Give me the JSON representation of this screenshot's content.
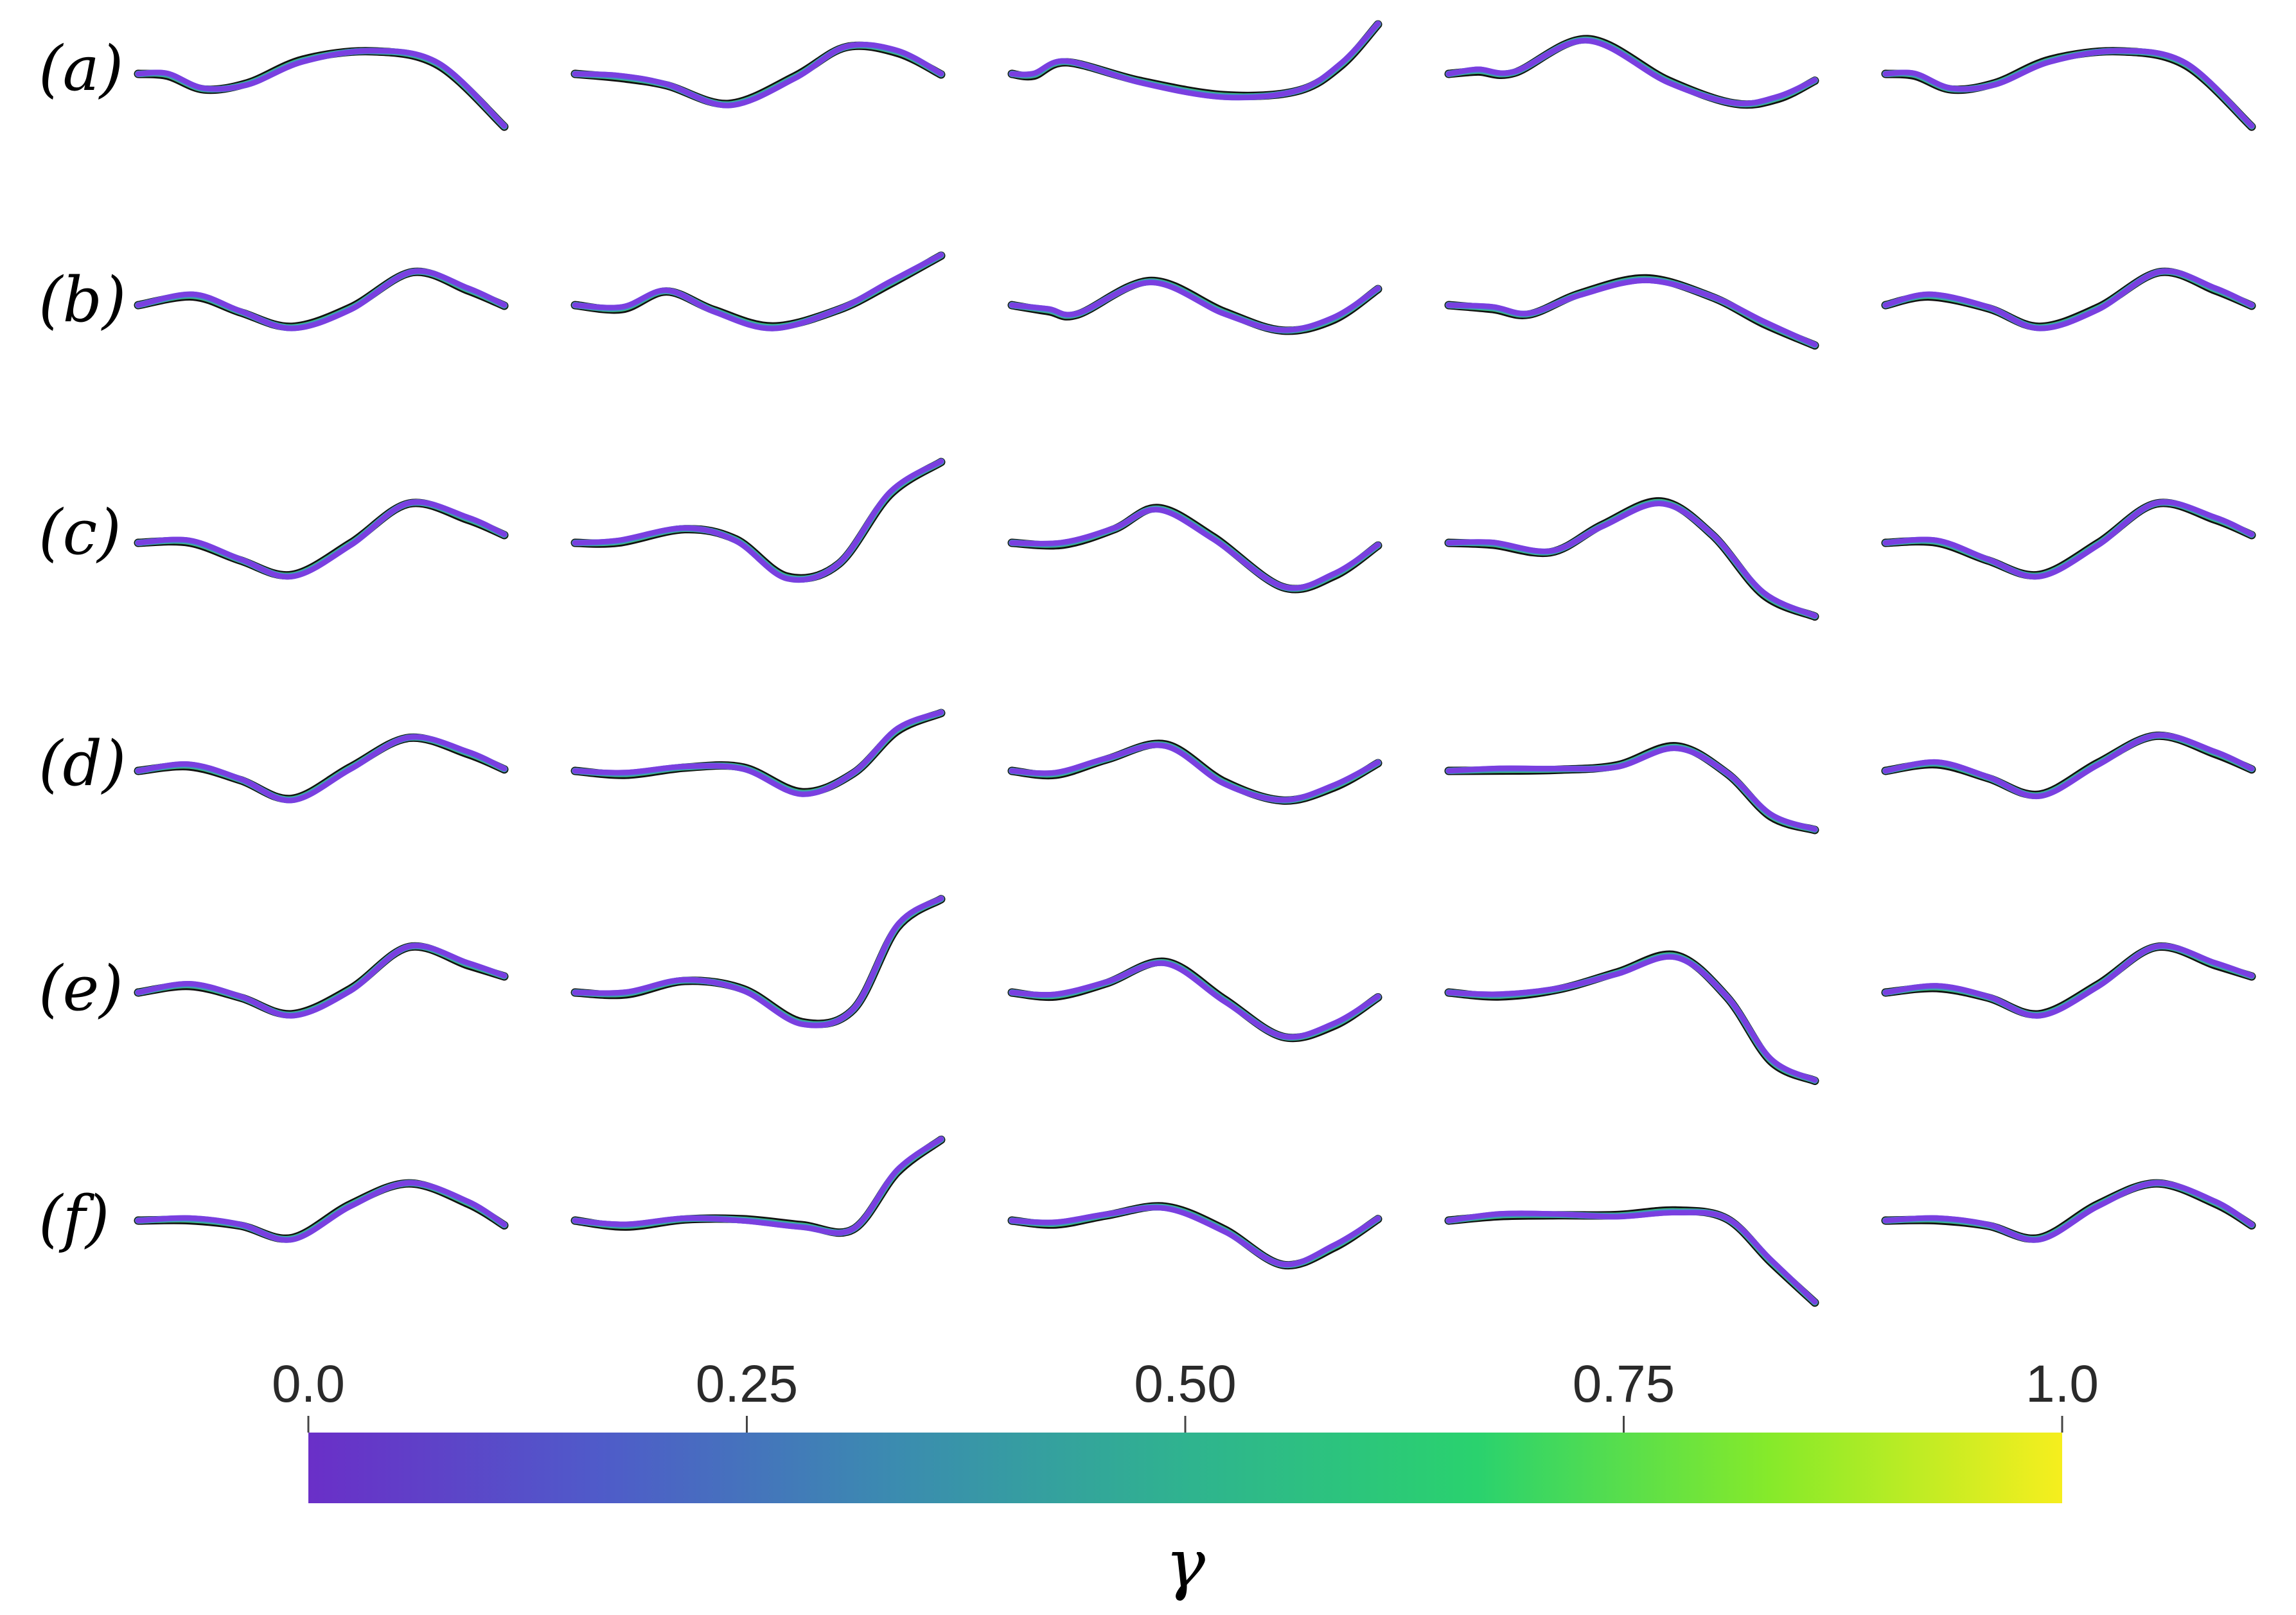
{
  "figure": {
    "row_labels": [
      "(a)",
      "(b)",
      "(c)",
      "(d)",
      "(e)",
      "(f)"
    ],
    "colorbar": {
      "label": "γ",
      "ticks": [
        "0.0",
        "0.25",
        "0.50",
        "0.75",
        "1.0"
      ],
      "tick_values": [
        0.0,
        0.25,
        0.5,
        0.75,
        1.0
      ],
      "colors": [
        "#6a2fc8",
        "#4f5bc9",
        "#3b8bb0",
        "#2fb38f",
        "#2ad26e",
        "#86ea2a",
        "#f6ee1e"
      ]
    },
    "curve_colors": {
      "outline": "#111111",
      "green": "#3fd07a",
      "teal": "#3a98b4",
      "blue": "#5a6ed6",
      "purple": "#7a3fe0"
    },
    "rows": [
      [
        [
          [
            0.0,
            0.0
          ],
          [
            0.08,
            0.0
          ],
          [
            0.18,
            -0.35
          ],
          [
            0.3,
            -0.25
          ],
          [
            0.45,
            0.3
          ],
          [
            0.64,
            0.55
          ],
          [
            0.82,
            0.25
          ],
          [
            1.0,
            -1.25
          ]
        ],
        [
          [
            0.0,
            0.0
          ],
          [
            0.12,
            -0.05
          ],
          [
            0.25,
            -0.25
          ],
          [
            0.42,
            -0.75
          ],
          [
            0.6,
            -0.1
          ],
          [
            0.74,
            0.65
          ],
          [
            0.88,
            0.55
          ],
          [
            1.0,
            0.0
          ]
        ],
        [
          [
            0.0,
            0.0
          ],
          [
            0.06,
            0.0
          ],
          [
            0.15,
            0.3
          ],
          [
            0.35,
            -0.2
          ],
          [
            0.58,
            -0.55
          ],
          [
            0.78,
            -0.4
          ],
          [
            0.9,
            0.25
          ],
          [
            1.0,
            1.2
          ]
        ],
        [
          [
            0.0,
            0.0
          ],
          [
            0.08,
            0.1
          ],
          [
            0.18,
            0.05
          ],
          [
            0.38,
            0.8
          ],
          [
            0.6,
            -0.2
          ],
          [
            0.78,
            -0.7
          ],
          [
            0.9,
            -0.55
          ],
          [
            1.0,
            -0.15
          ]
        ],
        [
          [
            0.0,
            0.0
          ],
          [
            0.08,
            0.0
          ],
          [
            0.18,
            -0.35
          ],
          [
            0.3,
            -0.25
          ],
          [
            0.45,
            0.3
          ],
          [
            0.64,
            0.55
          ],
          [
            0.82,
            0.25
          ],
          [
            1.0,
            -1.25
          ]
        ]
      ],
      [
        [
          [
            0.0,
            0.0
          ],
          [
            0.15,
            0.25
          ],
          [
            0.28,
            -0.15
          ],
          [
            0.42,
            -0.55
          ],
          [
            0.58,
            -0.1
          ],
          [
            0.75,
            0.8
          ],
          [
            0.9,
            0.4
          ],
          [
            1.0,
            0.0
          ]
        ],
        [
          [
            0.0,
            0.0
          ],
          [
            0.13,
            -0.05
          ],
          [
            0.25,
            0.35
          ],
          [
            0.38,
            -0.15
          ],
          [
            0.54,
            -0.55
          ],
          [
            0.72,
            -0.1
          ],
          [
            0.86,
            0.55
          ],
          [
            1.0,
            1.2
          ]
        ],
        [
          [
            0.0,
            0.0
          ],
          [
            0.1,
            -0.1
          ],
          [
            0.18,
            -0.2
          ],
          [
            0.38,
            0.55
          ],
          [
            0.58,
            -0.2
          ],
          [
            0.74,
            -0.6
          ],
          [
            0.88,
            -0.3
          ],
          [
            1.0,
            0.4
          ]
        ],
        [
          [
            0.0,
            0.0
          ],
          [
            0.12,
            -0.05
          ],
          [
            0.22,
            -0.2
          ],
          [
            0.36,
            0.25
          ],
          [
            0.54,
            0.6
          ],
          [
            0.72,
            0.2
          ],
          [
            0.86,
            -0.4
          ],
          [
            1.0,
            -0.95
          ]
        ],
        [
          [
            0.0,
            0.0
          ],
          [
            0.12,
            0.25
          ],
          [
            0.28,
            -0.05
          ],
          [
            0.42,
            -0.55
          ],
          [
            0.58,
            -0.1
          ],
          [
            0.75,
            0.8
          ],
          [
            0.9,
            0.4
          ],
          [
            1.0,
            0.0
          ]
        ]
      ],
      [
        [
          [
            0.0,
            0.0
          ],
          [
            0.14,
            0.05
          ],
          [
            0.28,
            -0.4
          ],
          [
            0.42,
            -0.8
          ],
          [
            0.58,
            -0.05
          ],
          [
            0.74,
            0.95
          ],
          [
            0.9,
            0.6
          ],
          [
            1.0,
            0.2
          ]
        ],
        [
          [
            0.0,
            0.0
          ],
          [
            0.12,
            0.05
          ],
          [
            0.3,
            0.35
          ],
          [
            0.44,
            0.05
          ],
          [
            0.58,
            -0.85
          ],
          [
            0.72,
            -0.5
          ],
          [
            0.86,
            1.2
          ],
          [
            1.0,
            1.95
          ]
        ],
        [
          [
            0.0,
            0.0
          ],
          [
            0.14,
            0.0
          ],
          [
            0.28,
            0.35
          ],
          [
            0.4,
            0.8
          ],
          [
            0.55,
            0.1
          ],
          [
            0.74,
            -1.05
          ],
          [
            0.88,
            -0.75
          ],
          [
            1.0,
            -0.05
          ]
        ],
        [
          [
            0.0,
            0.0
          ],
          [
            0.12,
            0.0
          ],
          [
            0.28,
            -0.2
          ],
          [
            0.42,
            0.4
          ],
          [
            0.58,
            0.95
          ],
          [
            0.72,
            0.2
          ],
          [
            0.86,
            -1.2
          ],
          [
            1.0,
            -1.75
          ]
        ],
        [
          [
            0.0,
            0.0
          ],
          [
            0.14,
            0.05
          ],
          [
            0.28,
            -0.4
          ],
          [
            0.42,
            -0.8
          ],
          [
            0.58,
            -0.05
          ],
          [
            0.74,
            0.95
          ],
          [
            0.9,
            0.6
          ],
          [
            1.0,
            0.2
          ]
        ]
      ],
      [
        [
          [
            0.0,
            0.0
          ],
          [
            0.14,
            0.15
          ],
          [
            0.28,
            -0.2
          ],
          [
            0.42,
            -0.7
          ],
          [
            0.58,
            0.05
          ],
          [
            0.74,
            0.8
          ],
          [
            0.9,
            0.45
          ],
          [
            1.0,
            0.05
          ]
        ],
        [
          [
            0.0,
            0.0
          ],
          [
            0.14,
            -0.05
          ],
          [
            0.3,
            0.1
          ],
          [
            0.46,
            0.05
          ],
          [
            0.62,
            -0.55
          ],
          [
            0.76,
            -0.05
          ],
          [
            0.88,
            1.0
          ],
          [
            1.0,
            1.4
          ]
        ],
        [
          [
            0.0,
            0.0
          ],
          [
            0.12,
            -0.05
          ],
          [
            0.26,
            0.3
          ],
          [
            0.42,
            0.6
          ],
          [
            0.58,
            -0.3
          ],
          [
            0.74,
            -0.7
          ],
          [
            0.88,
            -0.35
          ],
          [
            1.0,
            0.2
          ]
        ],
        [
          [
            0.0,
            0.0
          ],
          [
            0.14,
            0.05
          ],
          [
            0.3,
            0.05
          ],
          [
            0.46,
            0.1
          ],
          [
            0.62,
            0.55
          ],
          [
            0.76,
            -0.05
          ],
          [
            0.88,
            -1.05
          ],
          [
            1.0,
            -1.4
          ]
        ],
        [
          [
            0.0,
            0.0
          ],
          [
            0.14,
            0.2
          ],
          [
            0.28,
            -0.15
          ],
          [
            0.42,
            -0.6
          ],
          [
            0.58,
            0.15
          ],
          [
            0.74,
            0.85
          ],
          [
            0.9,
            0.45
          ],
          [
            1.0,
            0.05
          ]
        ]
      ],
      [
        [
          [
            0.0,
            0.0
          ],
          [
            0.14,
            0.2
          ],
          [
            0.28,
            -0.1
          ],
          [
            0.42,
            -0.55
          ],
          [
            0.58,
            0.05
          ],
          [
            0.74,
            1.1
          ],
          [
            0.9,
            0.7
          ],
          [
            1.0,
            0.4
          ]
        ],
        [
          [
            0.0,
            0.0
          ],
          [
            0.14,
            0.0
          ],
          [
            0.3,
            0.3
          ],
          [
            0.46,
            0.05
          ],
          [
            0.62,
            -0.75
          ],
          [
            0.76,
            -0.4
          ],
          [
            0.88,
            1.6
          ],
          [
            1.0,
            2.25
          ]
        ],
        [
          [
            0.0,
            0.0
          ],
          [
            0.12,
            -0.05
          ],
          [
            0.26,
            0.25
          ],
          [
            0.42,
            0.7
          ],
          [
            0.58,
            -0.2
          ],
          [
            0.74,
            -1.05
          ],
          [
            0.88,
            -0.75
          ],
          [
            1.0,
            -0.1
          ]
        ],
        [
          [
            0.0,
            0.0
          ],
          [
            0.14,
            -0.05
          ],
          [
            0.3,
            0.1
          ],
          [
            0.46,
            0.45
          ],
          [
            0.62,
            0.85
          ],
          [
            0.76,
            -0.1
          ],
          [
            0.88,
            -1.6
          ],
          [
            1.0,
            -2.1
          ]
        ],
        [
          [
            0.0,
            0.0
          ],
          [
            0.14,
            0.15
          ],
          [
            0.28,
            -0.1
          ],
          [
            0.42,
            -0.55
          ],
          [
            0.58,
            0.15
          ],
          [
            0.74,
            1.1
          ],
          [
            0.9,
            0.7
          ],
          [
            1.0,
            0.4
          ]
        ]
      ],
      [
        [
          [
            0.0,
            0.0
          ],
          [
            0.14,
            0.05
          ],
          [
            0.28,
            -0.1
          ],
          [
            0.42,
            -0.45
          ],
          [
            0.58,
            0.35
          ],
          [
            0.74,
            0.9
          ],
          [
            0.9,
            0.45
          ],
          [
            1.0,
            -0.1
          ]
        ],
        [
          [
            0.0,
            0.0
          ],
          [
            0.14,
            -0.1
          ],
          [
            0.3,
            0.05
          ],
          [
            0.46,
            0.0
          ],
          [
            0.62,
            -0.15
          ],
          [
            0.76,
            -0.2
          ],
          [
            0.88,
            1.2
          ],
          [
            1.0,
            1.95
          ]
        ],
        [
          [
            0.0,
            0.0
          ],
          [
            0.12,
            -0.05
          ],
          [
            0.26,
            0.15
          ],
          [
            0.42,
            0.3
          ],
          [
            0.58,
            -0.25
          ],
          [
            0.74,
            -1.05
          ],
          [
            0.88,
            -0.6
          ],
          [
            1.0,
            0.05
          ]
        ],
        [
          [
            0.0,
            0.0
          ],
          [
            0.14,
            0.15
          ],
          [
            0.3,
            0.15
          ],
          [
            0.46,
            0.1
          ],
          [
            0.62,
            0.2
          ],
          [
            0.76,
            0.05
          ],
          [
            0.88,
            -0.95
          ],
          [
            1.0,
            -1.95
          ]
        ],
        [
          [
            0.0,
            0.0
          ],
          [
            0.14,
            0.05
          ],
          [
            0.28,
            -0.1
          ],
          [
            0.42,
            -0.45
          ],
          [
            0.58,
            0.35
          ],
          [
            0.74,
            0.9
          ],
          [
            0.9,
            0.45
          ],
          [
            1.0,
            -0.1
          ]
        ]
      ]
    ]
  }
}
